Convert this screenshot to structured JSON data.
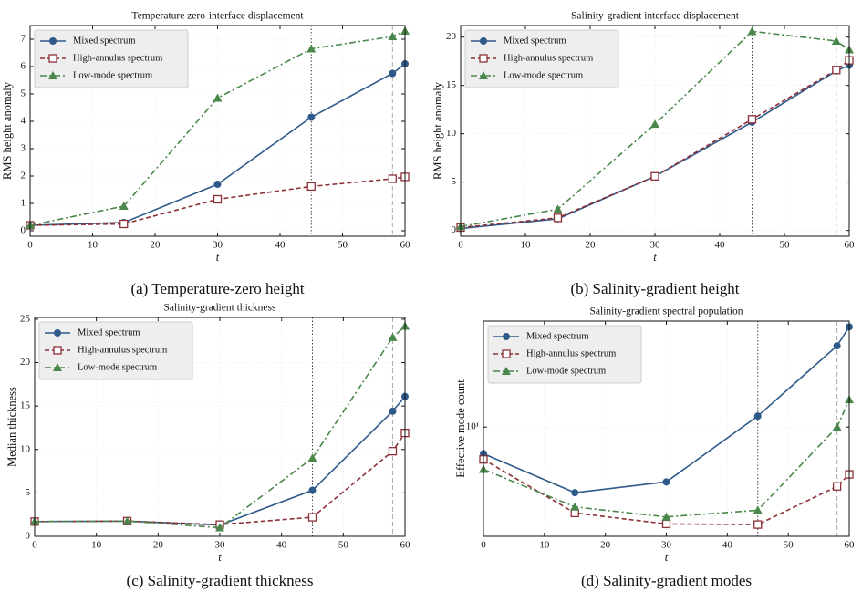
{
  "chart_data": [
    {
      "type": "line",
      "title": "Temperature zero-interface displacement",
      "caption": "(a) Temperature-zero height",
      "xlabel": "t",
      "ylabel": "RMS height anomaly",
      "x": [
        0,
        15,
        30,
        45,
        58,
        60
      ],
      "xlim": [
        0,
        60
      ],
      "xticks": [
        0,
        10,
        20,
        30,
        40,
        50,
        60
      ],
      "ylim": [
        -0.2,
        7.5
      ],
      "yticks": [
        0,
        1,
        2,
        3,
        4,
        5,
        6,
        7
      ],
      "log_y": false,
      "grid": true,
      "legend": "upper left",
      "vlines": [
        45,
        58
      ],
      "series": [
        {
          "name": "Mixed spectrum",
          "color": "#2e5a8a",
          "marker": "circle",
          "linestyle": "solid",
          "values": [
            0.2,
            0.3,
            1.7,
            4.15,
            5.75,
            6.1
          ]
        },
        {
          "name": "High-annulus spectrum",
          "color": "#8c2f37",
          "marker": "square",
          "linestyle": "dashed",
          "values": [
            0.2,
            0.25,
            1.15,
            1.62,
            1.9,
            1.97
          ]
        },
        {
          "name": "Low-mode spectrum",
          "color": "#4a874a",
          "marker": "triangle",
          "linestyle": "dashdot",
          "values": [
            0.2,
            0.9,
            4.85,
            6.65,
            7.1,
            7.3
          ]
        }
      ]
    },
    {
      "type": "line",
      "title": "Salinity-gradient interface displacement",
      "caption": "(b) Salinity-gradient height",
      "xlabel": "t",
      "ylabel": "RMS height anomaly",
      "x": [
        0,
        15,
        30,
        45,
        58,
        60
      ],
      "xlim": [
        0,
        60
      ],
      "xticks": [
        0,
        10,
        20,
        30,
        40,
        50,
        60
      ],
      "ylim": [
        -0.6,
        21.2
      ],
      "yticks": [
        0,
        5,
        10,
        15,
        20
      ],
      "log_y": false,
      "grid": true,
      "legend": "upper left",
      "vlines": [
        45,
        58
      ],
      "series": [
        {
          "name": "Mixed spectrum",
          "color": "#2e5a8a",
          "marker": "circle",
          "linestyle": "solid",
          "values": [
            0.2,
            1.2,
            5.6,
            11.2,
            16.5,
            17.1
          ]
        },
        {
          "name": "High-annulus spectrum",
          "color": "#8c2f37",
          "marker": "square",
          "linestyle": "dashed",
          "values": [
            0.3,
            1.3,
            5.6,
            11.5,
            16.6,
            17.6
          ]
        },
        {
          "name": "Low-mode spectrum",
          "color": "#4a874a",
          "marker": "triangle",
          "linestyle": "dashdot",
          "values": [
            0.4,
            2.2,
            11,
            20.6,
            19.6,
            18.7
          ]
        }
      ]
    },
    {
      "type": "line",
      "title": "Salinity-gradient thickness",
      "caption": "(c) Salinity-gradient thickness",
      "xlabel": "t",
      "ylabel": "Median thickness",
      "x": [
        0,
        15,
        30,
        45,
        58,
        60
      ],
      "xlim": [
        0,
        60
      ],
      "xticks": [
        0,
        10,
        20,
        30,
        40,
        50,
        60
      ],
      "ylim": [
        0,
        25.2
      ],
      "yticks": [
        0,
        5,
        10,
        15,
        20,
        25
      ],
      "log_y": false,
      "grid": true,
      "legend": "upper left",
      "vlines": [
        45,
        58
      ],
      "series": [
        {
          "name": "Mixed spectrum",
          "color": "#2e5a8a",
          "marker": "circle",
          "linestyle": "solid",
          "values": [
            1.7,
            1.75,
            1.3,
            5.3,
            14.4,
            16.1
          ]
        },
        {
          "name": "High-annulus spectrum",
          "color": "#8c2f37",
          "marker": "square",
          "linestyle": "dashed",
          "values": [
            1.7,
            1.75,
            1.35,
            2.2,
            9.8,
            11.9
          ]
        },
        {
          "name": "Low-mode spectrum",
          "color": "#4a874a",
          "marker": "triangle",
          "linestyle": "dashdot",
          "values": [
            1.7,
            1.75,
            1.0,
            9.0,
            22.9,
            24.2
          ]
        }
      ]
    },
    {
      "type": "line",
      "title": "Salinity-gradient spectral population",
      "caption": "(d) Salinity-gradient modes",
      "xlabel": "t",
      "ylabel": "Effective mode count",
      "x": [
        0,
        15,
        30,
        45,
        58,
        60
      ],
      "xlim": [
        0,
        60
      ],
      "xticks": [
        0,
        10,
        20,
        30,
        40,
        50,
        60
      ],
      "ylim": [
        1.5,
        63
      ],
      "yticks": [
        {
          "value": 10,
          "label": "10¹"
        }
      ],
      "log_y": true,
      "grid": true,
      "legend": "upper left",
      "vlines": [
        45,
        58
      ],
      "series": [
        {
          "name": "Mixed spectrum",
          "color": "#2e5a8a",
          "marker": "circle",
          "linestyle": "solid",
          "values": [
            6.3,
            3.2,
            3.86,
            12.1,
            41,
            57
          ]
        },
        {
          "name": "High-annulus spectrum",
          "color": "#8c2f37",
          "marker": "square",
          "linestyle": "dashed",
          "values": [
            5.7,
            2.25,
            1.86,
            1.84,
            3.57,
            4.4
          ]
        },
        {
          "name": "Low-mode spectrum",
          "color": "#4a874a",
          "marker": "triangle",
          "linestyle": "dashdot",
          "values": [
            4.8,
            2.5,
            2.1,
            2.36,
            10,
            16.1
          ]
        }
      ]
    }
  ]
}
